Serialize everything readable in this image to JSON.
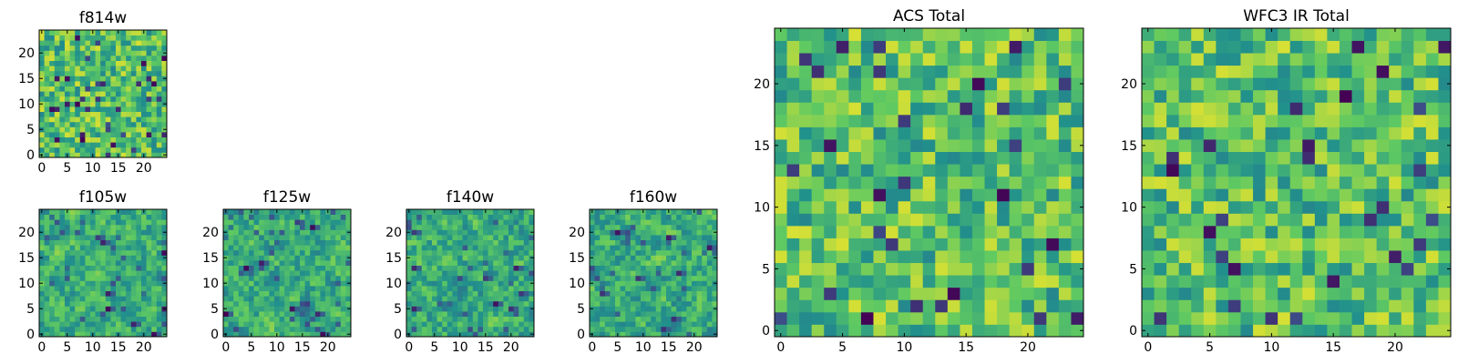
{
  "chart_data": [
    {
      "type": "heatmap",
      "title": "f814w",
      "size": 25,
      "xlim": [
        0,
        24
      ],
      "ylim": [
        0,
        24
      ],
      "xticks": [
        "0",
        "5",
        "10",
        "15",
        "20"
      ],
      "yticks": [
        "0",
        "5",
        "10",
        "15",
        "20"
      ],
      "colormap": "viridis",
      "seed": 814
    },
    {
      "type": "heatmap",
      "title": "f105w",
      "size": 25,
      "xlim": [
        0,
        24
      ],
      "ylim": [
        0,
        24
      ],
      "xticks": [
        "0",
        "5",
        "10",
        "15",
        "20"
      ],
      "yticks": [
        "0",
        "5",
        "10",
        "15",
        "20"
      ],
      "colormap": "viridis",
      "seed": 105
    },
    {
      "type": "heatmap",
      "title": "f125w",
      "size": 25,
      "xlim": [
        0,
        24
      ],
      "ylim": [
        0,
        24
      ],
      "xticks": [
        "0",
        "5",
        "10",
        "15",
        "20"
      ],
      "yticks": [
        "0",
        "5",
        "10",
        "15",
        "20"
      ],
      "colormap": "viridis",
      "seed": 125
    },
    {
      "type": "heatmap",
      "title": "f140w",
      "size": 25,
      "xlim": [
        0,
        24
      ],
      "ylim": [
        0,
        24
      ],
      "xticks": [
        "0",
        "5",
        "10",
        "15",
        "20"
      ],
      "yticks": [
        "0",
        "5",
        "10",
        "15",
        "20"
      ],
      "colormap": "viridis",
      "seed": 140
    },
    {
      "type": "heatmap",
      "title": "f160w",
      "size": 25,
      "xlim": [
        0,
        24
      ],
      "ylim": [
        0,
        24
      ],
      "xticks": [
        "0",
        "5",
        "10",
        "15",
        "20"
      ],
      "yticks": [
        "0",
        "5",
        "10",
        "15",
        "20"
      ],
      "colormap": "viridis",
      "seed": 160
    },
    {
      "type": "heatmap",
      "title": "ACS Total",
      "size": 25,
      "xlim": [
        0,
        24
      ],
      "ylim": [
        0,
        24
      ],
      "xticks": [
        "0",
        "5",
        "10",
        "15",
        "20"
      ],
      "yticks": [
        "0",
        "5",
        "10",
        "15",
        "20"
      ],
      "colormap": "viridis",
      "seed": 1
    },
    {
      "type": "heatmap",
      "title": "WFC3 IR Total",
      "size": 25,
      "xlim": [
        0,
        24
      ],
      "ylim": [
        0,
        24
      ],
      "xticks": [
        "0",
        "5",
        "10",
        "15",
        "20"
      ],
      "yticks": [
        "0",
        "5",
        "10",
        "15",
        "20"
      ],
      "colormap": "viridis",
      "seed": 2
    }
  ],
  "colors": {
    "cmap_low": "#440154",
    "cmap_mid1": "#3b528b",
    "cmap_mid2": "#21918c",
    "cmap_mid3": "#5ec962",
    "cmap_high": "#fde725"
  }
}
